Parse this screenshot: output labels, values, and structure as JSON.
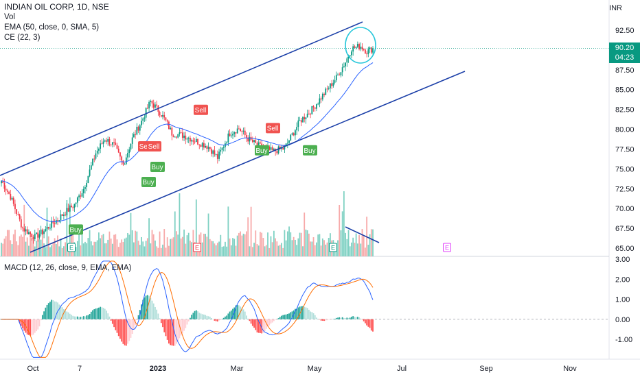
{
  "legend": {
    "title": "INDIAN OIL CORP, 1D, NSE",
    "vol": "Vol",
    "ema": "EMA (50, close, 0, SMA, 5)",
    "ce": "CE (22, 3)",
    "macd": "MACD (12, 26, close, 9, EMA, EMA)"
  },
  "axis": {
    "currency": "INR",
    "last_price": "90.20",
    "countdown": "04:23"
  },
  "colors": {
    "up": "#089981",
    "down": "#f23645",
    "trendline": "#1b3fa8",
    "ema": "#2962ff",
    "macd": "#2962ff",
    "signal": "#ff6d00",
    "circle": "#26c6da"
  },
  "chart_data": [
    {
      "type": "candlestick",
      "title": "INDIAN OIL CORP, 1D, NSE",
      "y_ticks": [
        "92.50",
        "90.00",
        "87.50",
        "85.00",
        "82.50",
        "80.00",
        "77.50",
        "75.00",
        "72.50",
        "70.00",
        "67.50",
        "65.00"
      ],
      "ylim": [
        64.5,
        93.5
      ],
      "x_ticks": [
        "Oct",
        "7",
        "2023",
        "Mar",
        "May",
        "Jul",
        "Sep",
        "Nov"
      ],
      "last_price": 90.2,
      "signals": [
        {
          "label": "Buy",
          "price": 67.3
        },
        {
          "label": "Buy",
          "price": 73.3
        },
        {
          "label": "Buy",
          "price": 75.2
        },
        {
          "label": "Sell",
          "price": 77.8
        },
        {
          "label": "Sell",
          "price": 77.8
        },
        {
          "label": "Sell",
          "price": 82.4
        },
        {
          "label": "Sell",
          "price": 80.1
        },
        {
          "label": "Buy",
          "price": 77.3
        },
        {
          "label": "Buy",
          "price": 77.3
        }
      ],
      "event_markers": [
        "E",
        "E",
        "E",
        "E",
        "E"
      ]
    },
    {
      "type": "line",
      "title": "MACD (12, 26, close, 9, EMA, EMA)",
      "y_ticks": [
        "3.00",
        "2.00",
        "1.00",
        "0.00",
        "-1.00"
      ],
      "ylim": [
        -2.0,
        3.0
      ]
    }
  ]
}
